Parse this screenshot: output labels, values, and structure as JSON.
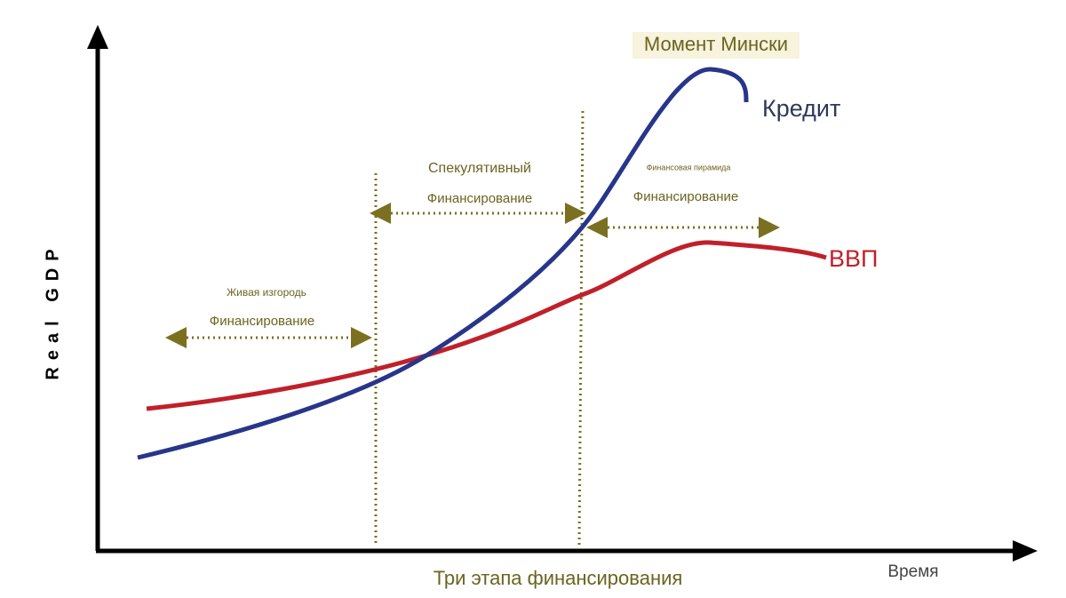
{
  "axes": {
    "y_label": "Real GDP",
    "x_label": "Время"
  },
  "caption": "Три этапа финансирования",
  "annotation": "Момент Мински",
  "curves": [
    {
      "label": "Кредит"
    },
    {
      "label": "ВВП"
    }
  ],
  "phases": [
    {
      "title": "Живая изгородь",
      "subtitle": "Финансирование"
    },
    {
      "title": "Спекулятивный",
      "subtitle": "Финансирование"
    },
    {
      "title": "Финансовая пирамида",
      "subtitle": "Финансирование"
    }
  ]
}
